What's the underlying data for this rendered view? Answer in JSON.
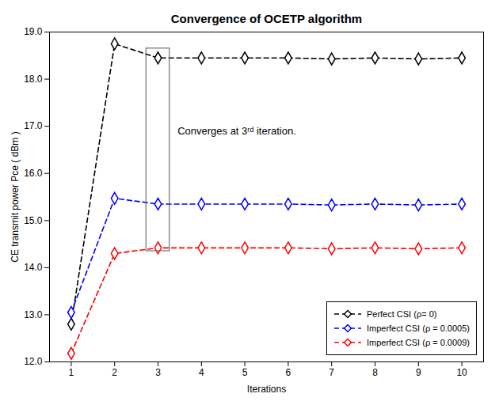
{
  "chart_data": {
    "type": "line",
    "title": "Convergence of OCETP algorithm",
    "xlabel": "Iterations",
    "ylabel": "CE transmit power Pce ( dBm )",
    "x": [
      1,
      2,
      3,
      4,
      5,
      6,
      7,
      8,
      9,
      10
    ],
    "series": [
      {
        "name": "Perfect CSI (ρ= 0)",
        "color": "black",
        "values": [
          12.8,
          18.75,
          18.45,
          18.45,
          18.45,
          18.45,
          18.43,
          18.45,
          18.43,
          18.45
        ]
      },
      {
        "name": "Imperfect CSI (ρ = 0.0005)",
        "color": "blue",
        "values": [
          13.05,
          15.47,
          15.35,
          15.35,
          15.35,
          15.35,
          15.33,
          15.35,
          15.33,
          15.35
        ]
      },
      {
        "name": "Imperfect CSI (ρ = 0.0009)",
        "color": "red",
        "values": [
          12.18,
          14.3,
          14.42,
          14.42,
          14.42,
          14.42,
          14.4,
          14.42,
          14.4,
          14.42
        ]
      }
    ],
    "xlim": [
      0.5,
      10.5
    ],
    "ylim": [
      12,
      19
    ],
    "xticks": [
      1,
      2,
      3,
      4,
      5,
      6,
      7,
      8,
      9,
      10
    ],
    "yticks": [
      12,
      13,
      14,
      15,
      16,
      17,
      18,
      19
    ],
    "grid": false,
    "legend": "lower right",
    "marker": "diamond",
    "line_style": "dashed",
    "annotations": [
      {
        "text": "Converges at 3ʳᵈ iteration.",
        "x": 3.45,
        "y": 16.9,
        "box": {
          "x": [
            2.73,
            3.27
          ],
          "y": [
            14.35,
            18.65
          ]
        }
      }
    ]
  }
}
